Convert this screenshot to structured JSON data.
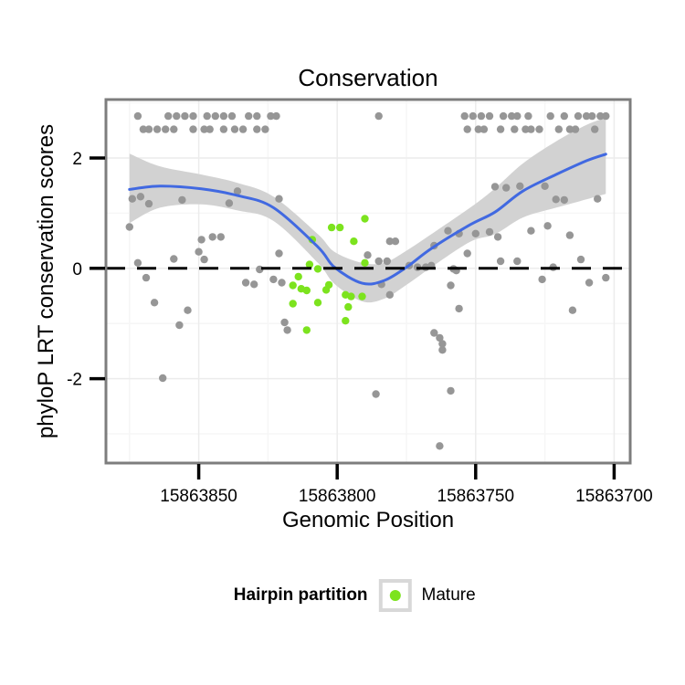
{
  "chart_data": {
    "type": "scatter",
    "title": "Conservation",
    "xlabel": "Genomic Position",
    "ylabel": "phyloP LRT conservation scores",
    "x_axis": {
      "reversed": true,
      "lim": [
        15863883.5,
        15863694.2
      ],
      "ticks": [
        {
          "value": 15863850,
          "label": "15863850"
        },
        {
          "value": 15863800,
          "label": "15863800"
        },
        {
          "value": 15863750,
          "label": "15863750"
        },
        {
          "value": 15863700,
          "label": "15863700"
        }
      ],
      "minor_ticks": [
        15863875,
        15863825,
        15863775,
        15863725
      ]
    },
    "y_axis": {
      "lim": [
        -3.53,
        3.06
      ],
      "ticks": [
        {
          "value": 2,
          "label": "2"
        },
        {
          "value": 0,
          "label": "0"
        },
        {
          "value": -2,
          "label": "-2"
        }
      ],
      "minor_ticks": [
        -3,
        -1,
        1,
        3
      ]
    },
    "reference_line": {
      "y": 0,
      "style": "dashed",
      "color": "#000000"
    },
    "series": [
      {
        "name": "other",
        "color": "#969696",
        "points": [
          [
            15863872,
            2.76
          ],
          [
            15863861,
            2.76
          ],
          [
            15863858,
            2.76
          ],
          [
            15863855,
            2.76
          ],
          [
            15863852,
            2.76
          ],
          [
            15863847,
            2.76
          ],
          [
            15863844,
            2.76
          ],
          [
            15863841,
            2.76
          ],
          [
            15863838,
            2.76
          ],
          [
            15863832,
            2.76
          ],
          [
            15863829,
            2.76
          ],
          [
            15863824,
            2.76
          ],
          [
            15863822,
            2.76
          ],
          [
            15863785,
            2.76
          ],
          [
            15863754,
            2.76
          ],
          [
            15863751,
            2.76
          ],
          [
            15863748,
            2.76
          ],
          [
            15863745,
            2.76
          ],
          [
            15863740,
            2.76
          ],
          [
            15863737,
            2.76
          ],
          [
            15863735,
            2.76
          ],
          [
            15863731,
            2.76
          ],
          [
            15863723,
            2.76
          ],
          [
            15863718,
            2.76
          ],
          [
            15863713,
            2.76
          ],
          [
            15863710,
            2.76
          ],
          [
            15863708,
            2.76
          ],
          [
            15863705,
            2.76
          ],
          [
            15863703,
            2.76
          ],
          [
            15863870,
            2.52
          ],
          [
            15863868,
            2.52
          ],
          [
            15863865,
            2.52
          ],
          [
            15863862,
            2.52
          ],
          [
            15863859,
            2.52
          ],
          [
            15863852,
            2.52
          ],
          [
            15863848,
            2.52
          ],
          [
            15863846,
            2.52
          ],
          [
            15863841,
            2.52
          ],
          [
            15863837,
            2.52
          ],
          [
            15863834,
            2.52
          ],
          [
            15863829,
            2.52
          ],
          [
            15863826,
            2.52
          ],
          [
            15863753,
            2.52
          ],
          [
            15863749,
            2.52
          ],
          [
            15863747,
            2.52
          ],
          [
            15863741,
            2.52
          ],
          [
            15863736,
            2.52
          ],
          [
            15863732,
            2.52
          ],
          [
            15863730,
            2.52
          ],
          [
            15863727,
            2.52
          ],
          [
            15863720,
            2.52
          ],
          [
            15863716,
            2.52
          ],
          [
            15863714,
            2.52
          ],
          [
            15863707,
            2.52
          ],
          [
            15863874,
            1.26
          ],
          [
            15863871,
            1.3
          ],
          [
            15863868,
            1.17
          ],
          [
            15863856,
            1.24
          ],
          [
            15863839,
            1.18
          ],
          [
            15863836,
            1.4
          ],
          [
            15863821,
            1.26
          ],
          [
            15863875,
            0.75
          ],
          [
            15863849,
            0.52
          ],
          [
            15863845,
            0.57
          ],
          [
            15863842,
            0.57
          ],
          [
            15863850,
            0.3
          ],
          [
            15863848,
            0.16
          ],
          [
            15863872,
            0.1
          ],
          [
            15863869,
            -0.17
          ],
          [
            15863859,
            0.17
          ],
          [
            15863866,
            -0.62
          ],
          [
            15863854,
            -0.76
          ],
          [
            15863857,
            -1.03
          ],
          [
            15863833,
            -0.26
          ],
          [
            15863830,
            -0.29
          ],
          [
            15863828,
            -0.02
          ],
          [
            15863823,
            -0.2
          ],
          [
            15863820,
            -0.26
          ],
          [
            15863821,
            0.27
          ],
          [
            15863863,
            -1.99
          ],
          [
            15863819,
            -0.98
          ],
          [
            15863818,
            -1.12
          ],
          [
            15863789,
            0.24
          ],
          [
            15863785,
            0.13
          ],
          [
            15863782,
            0.13
          ],
          [
            15863781,
            0.49
          ],
          [
            15863779,
            0.49
          ],
          [
            15863784,
            -0.29
          ],
          [
            15863781,
            -0.48
          ],
          [
            15863774,
            0.05
          ],
          [
            15863771,
            0.02
          ],
          [
            15863768,
            0.02
          ],
          [
            15863766,
            0.05
          ],
          [
            15863765,
            0.41
          ],
          [
            15863760,
            0.68
          ],
          [
            15863756,
            0.63
          ],
          [
            15863753,
            0.27
          ],
          [
            15863758,
            -0.01
          ],
          [
            15863757,
            -0.04
          ],
          [
            15863759,
            -0.31
          ],
          [
            15863756,
            -0.73
          ],
          [
            15863765,
            -1.17
          ],
          [
            15863763,
            -1.26
          ],
          [
            15863762,
            -1.37
          ],
          [
            15863762,
            -1.48
          ],
          [
            15863786,
            -2.28
          ],
          [
            15863759,
            -2.22
          ],
          [
            15863763,
            -3.22
          ],
          [
            15863750,
            0.63
          ],
          [
            15863745,
            0.66
          ],
          [
            15863742,
            0.57
          ],
          [
            15863730,
            0.68
          ],
          [
            15863724,
            0.77
          ],
          [
            15863716,
            0.6
          ],
          [
            15863741,
            0.13
          ],
          [
            15863735,
            0.13
          ],
          [
            15863722,
            0.02
          ],
          [
            15863712,
            0.16
          ],
          [
            15863726,
            -0.2
          ],
          [
            15863709,
            -0.26
          ],
          [
            15863703,
            -0.17
          ],
          [
            15863715,
            -0.76
          ],
          [
            15863743,
            1.48
          ],
          [
            15863739,
            1.46
          ],
          [
            15863734,
            1.49
          ],
          [
            15863725,
            1.49
          ],
          [
            15863721,
            1.25
          ],
          [
            15863718,
            1.24
          ],
          [
            15863706,
            1.26
          ]
        ]
      },
      {
        "name": "Mature",
        "color": "#7CE31E",
        "points": [
          [
            15863790,
            0.9
          ],
          [
            15863802,
            0.74
          ],
          [
            15863799,
            0.74
          ],
          [
            15863809,
            0.52
          ],
          [
            15863794,
            0.49
          ],
          [
            15863790,
            0.1
          ],
          [
            15863810,
            0.07
          ],
          [
            15863807,
            -0.01
          ],
          [
            15863814,
            -0.15
          ],
          [
            15863816,
            -0.31
          ],
          [
            15863813,
            -0.37
          ],
          [
            15863811,
            -0.4
          ],
          [
            15863803,
            -0.3
          ],
          [
            15863804,
            -0.39
          ],
          [
            15863797,
            -0.48
          ],
          [
            15863795,
            -0.51
          ],
          [
            15863791,
            -0.51
          ],
          [
            15863807,
            -0.62
          ],
          [
            15863816,
            -0.64
          ],
          [
            15863796,
            -0.7
          ],
          [
            15863797,
            -0.95
          ],
          [
            15863811,
            -1.12
          ]
        ]
      }
    ],
    "smooth": {
      "color": "#4169E1",
      "ribbon_color": "#D2D2D2",
      "line": [
        [
          15863875,
          1.43
        ],
        [
          15863864,
          1.49
        ],
        [
          15863849,
          1.44
        ],
        [
          15863836,
          1.32
        ],
        [
          15863823,
          1.1
        ],
        [
          15863807,
          0.39
        ],
        [
          15863801,
          0.02
        ],
        [
          15863791,
          -0.27
        ],
        [
          15863783,
          -0.22
        ],
        [
          15863775,
          0.02
        ],
        [
          15863766,
          0.36
        ],
        [
          15863752,
          0.79
        ],
        [
          15863743,
          1.02
        ],
        [
          15863733,
          1.4
        ],
        [
          15863721,
          1.7
        ],
        [
          15863710,
          1.95
        ],
        [
          15863703,
          2.07
        ]
      ],
      "ribbon_upper": [
        [
          15863875,
          2.08
        ],
        [
          15863864,
          1.85
        ],
        [
          15863849,
          1.7
        ],
        [
          15863836,
          1.55
        ],
        [
          15863823,
          1.3
        ],
        [
          15863807,
          0.62
        ],
        [
          15863801,
          0.3
        ],
        [
          15863791,
          0.1
        ],
        [
          15863783,
          0.1
        ],
        [
          15863775,
          0.32
        ],
        [
          15863766,
          0.62
        ],
        [
          15863752,
          1.1
        ],
        [
          15863743,
          1.45
        ],
        [
          15863733,
          1.9
        ],
        [
          15863721,
          2.3
        ],
        [
          15863710,
          2.6
        ],
        [
          15863703,
          2.73
        ]
      ],
      "ribbon_lower": [
        [
          15863875,
          0.82
        ],
        [
          15863864,
          1.1
        ],
        [
          15863849,
          1.16
        ],
        [
          15863836,
          1.05
        ],
        [
          15863823,
          0.86
        ],
        [
          15863807,
          0.1
        ],
        [
          15863801,
          -0.28
        ],
        [
          15863791,
          -0.6
        ],
        [
          15863783,
          -0.55
        ],
        [
          15863775,
          -0.3
        ],
        [
          15863766,
          0.02
        ],
        [
          15863752,
          0.48
        ],
        [
          15863743,
          0.62
        ],
        [
          15863733,
          0.92
        ],
        [
          15863721,
          1.1
        ],
        [
          15863710,
          1.25
        ],
        [
          15863703,
          1.35
        ]
      ]
    },
    "legend": {
      "title": "Hairpin partition",
      "items": [
        {
          "label": "Mature",
          "color": "#7CE31E"
        }
      ]
    },
    "colors": {
      "panel_background": "#ffffff",
      "panel_border": "#7d7d7d",
      "grid_major": "#ececec",
      "grid_minor": "#f6f6f6",
      "tick": "#000000",
      "text": "#000000"
    }
  }
}
